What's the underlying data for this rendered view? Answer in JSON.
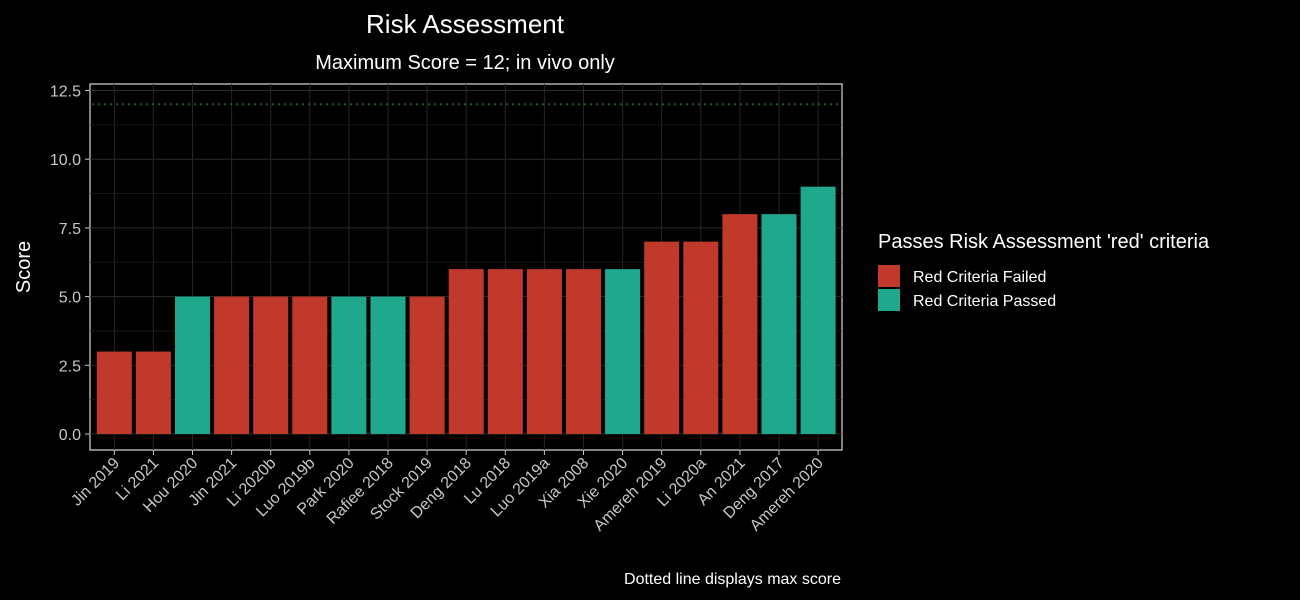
{
  "chart_data": {
    "type": "bar",
    "title": "Risk Assessment",
    "subtitle": "Maximum Score = 12; in vivo only",
    "xlabel": "",
    "ylabel": "Score",
    "ylim": [
      0,
      12.5
    ],
    "y_ticks": [
      "0.0",
      "2.5",
      "5.0",
      "7.5",
      "10.0",
      "12.5"
    ],
    "y_tick_values": [
      0,
      2.5,
      5,
      7.5,
      10,
      12.5
    ],
    "categories": [
      "Jin 2019",
      "Li 2021",
      "Hou 2020",
      "Jin 2021",
      "Li 2020b",
      "Luo 2019b",
      "Park 2020",
      "Rafiee 2018",
      "Stock 2019",
      "Deng 2018",
      "Lu 2018",
      "Luo 2019a",
      "Xia 2008",
      "Xie 2020",
      "Amereh 2019",
      "Li 2020a",
      "An 2021",
      "Deng 2017",
      "Amereh 2020"
    ],
    "values": [
      3,
      3,
      5,
      5,
      5,
      5,
      5,
      5,
      5,
      6,
      6,
      6,
      6,
      6,
      7,
      7,
      8,
      8,
      9
    ],
    "groups": [
      "failed",
      "failed",
      "passed",
      "failed",
      "failed",
      "failed",
      "passed",
      "passed",
      "failed",
      "failed",
      "failed",
      "failed",
      "failed",
      "passed",
      "failed",
      "failed",
      "failed",
      "passed",
      "passed"
    ],
    "reference_line": {
      "value": 12,
      "style": "dotted",
      "color": "#1f5a1f"
    },
    "legend": {
      "title": "Passes Risk Assessment 'red' criteria",
      "position": "right",
      "entries": [
        {
          "key": "failed",
          "label": "Red Criteria Failed",
          "color": "#c0392b"
        },
        {
          "key": "passed",
          "label": "Red Criteria Passed",
          "color": "#1fa88b"
        }
      ]
    },
    "caption": "Dotted line displays max score",
    "grid": true
  }
}
